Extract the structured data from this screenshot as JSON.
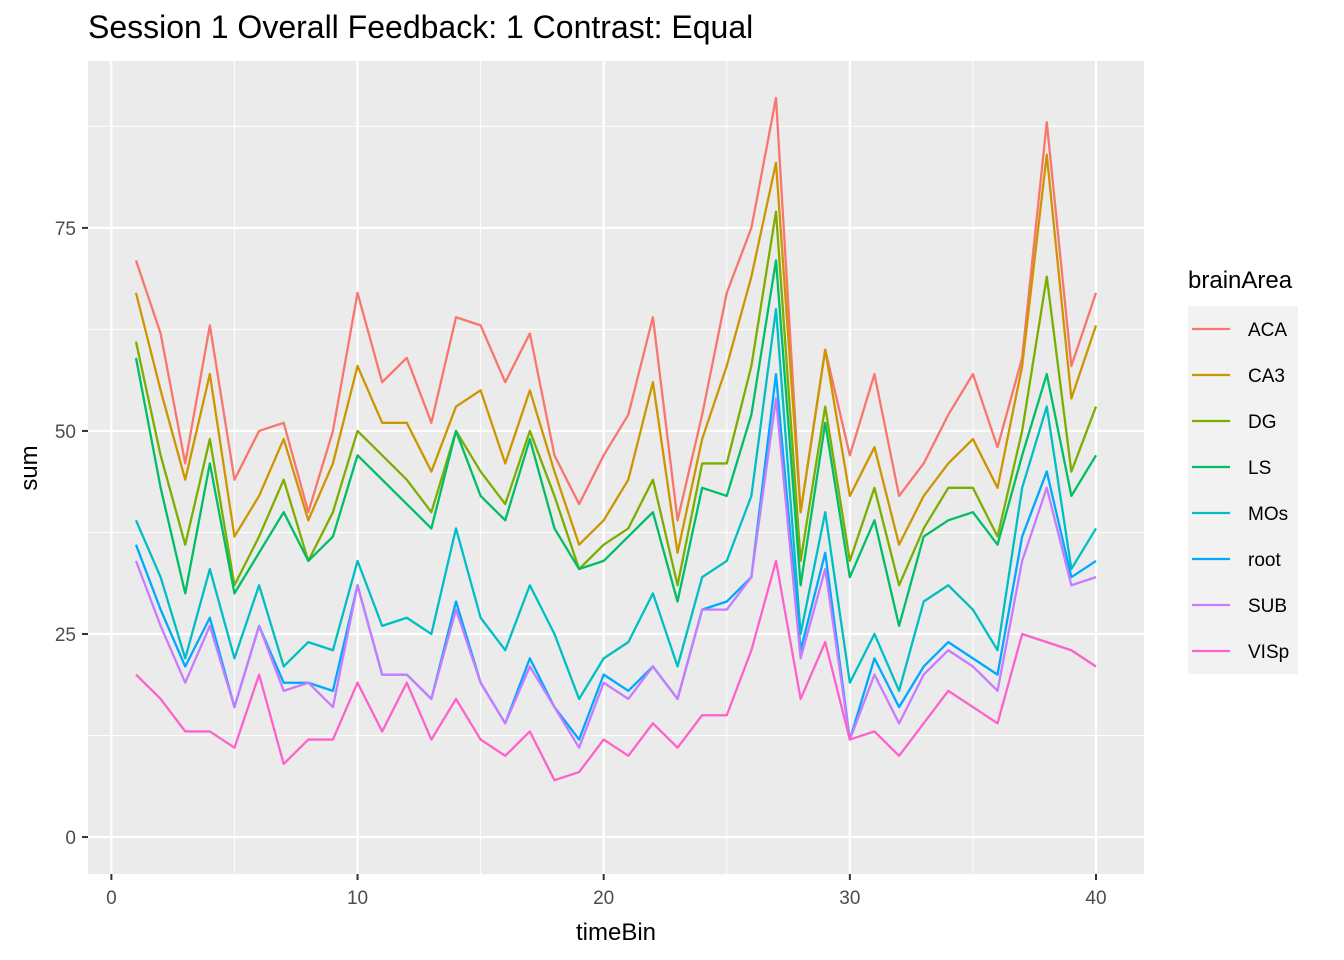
{
  "chart_data": {
    "type": "line",
    "title": "Session 1 Overall Feedback: 1 Contrast: Equal",
    "xlabel": "timeBin",
    "ylabel": "sum",
    "xlim": [
      -0.95,
      41.95
    ],
    "ylim": [
      -4.55,
      95.55
    ],
    "x_ticks": [
      0,
      10,
      20,
      30,
      40
    ],
    "x_tick_labels": [
      "0",
      "10",
      "20",
      "30",
      "40"
    ],
    "y_ticks": [
      0,
      25,
      50,
      75
    ],
    "y_tick_labels": [
      "0",
      "25",
      "50",
      "75"
    ],
    "grid": true,
    "legend": {
      "title": "brainArea",
      "position": "right"
    },
    "x": [
      1,
      2,
      3,
      4,
      5,
      6,
      7,
      8,
      9,
      10,
      11,
      12,
      13,
      14,
      15,
      16,
      17,
      18,
      19,
      20,
      21,
      22,
      23,
      24,
      25,
      26,
      27,
      28,
      29,
      30,
      31,
      32,
      33,
      34,
      35,
      36,
      37,
      38,
      39,
      40
    ],
    "series": [
      {
        "name": "ACA",
        "color": "#F8766D",
        "values": [
          71,
          62,
          46,
          63,
          44,
          50,
          51,
          40,
          50,
          67,
          56,
          59,
          51,
          64,
          63,
          56,
          62,
          47,
          41,
          47,
          52,
          64,
          39,
          52,
          67,
          75,
          91,
          40,
          60,
          47,
          57,
          42,
          46,
          52,
          57,
          48,
          59,
          88,
          58,
          67
        ]
      },
      {
        "name": "CA3",
        "color": "#CD9600",
        "values": [
          67,
          55,
          44,
          57,
          37,
          42,
          49,
          39,
          46,
          58,
          51,
          51,
          45,
          53,
          55,
          46,
          55,
          45,
          36,
          39,
          44,
          56,
          35,
          49,
          58,
          69,
          83,
          40,
          60,
          42,
          48,
          36,
          42,
          46,
          49,
          43,
          58,
          84,
          54,
          63
        ]
      },
      {
        "name": "DG",
        "color": "#7CAE00",
        "values": [
          61,
          47,
          36,
          49,
          31,
          37,
          44,
          34,
          40,
          50,
          47,
          44,
          40,
          50,
          45,
          41,
          50,
          42,
          33,
          36,
          38,
          44,
          31,
          46,
          46,
          58,
          77,
          34,
          53,
          34,
          43,
          31,
          38,
          43,
          43,
          37,
          50,
          69,
          45,
          53
        ]
      },
      {
        "name": "LS",
        "color": "#00BE67",
        "values": [
          59,
          43,
          30,
          46,
          30,
          35,
          40,
          34,
          37,
          47,
          44,
          41,
          38,
          50,
          42,
          39,
          49,
          38,
          33,
          34,
          37,
          40,
          29,
          43,
          42,
          52,
          71,
          31,
          51,
          32,
          39,
          26,
          37,
          39,
          40,
          36,
          47,
          57,
          42,
          47
        ]
      },
      {
        "name": "MOs",
        "color": "#00BFC4",
        "values": [
          39,
          32,
          22,
          33,
          22,
          31,
          21,
          24,
          23,
          34,
          26,
          27,
          25,
          38,
          27,
          23,
          31,
          25,
          17,
          22,
          24,
          30,
          21,
          32,
          34,
          42,
          65,
          25,
          40,
          19,
          25,
          18,
          29,
          31,
          28,
          23,
          43,
          53,
          33,
          38
        ]
      },
      {
        "name": "root",
        "color": "#00A9FF",
        "values": [
          36,
          28,
          21,
          27,
          16,
          26,
          19,
          19,
          18,
          31,
          20,
          20,
          17,
          29,
          19,
          14,
          22,
          16,
          12,
          20,
          18,
          21,
          17,
          28,
          29,
          32,
          57,
          23,
          35,
          12,
          22,
          16,
          21,
          24,
          22,
          20,
          37,
          45,
          32,
          34
        ]
      },
      {
        "name": "SUB",
        "color": "#C77CFF",
        "values": [
          34,
          26,
          19,
          26,
          16,
          26,
          18,
          19,
          16,
          31,
          20,
          20,
          17,
          28,
          19,
          14,
          21,
          16,
          11,
          19,
          17,
          21,
          17,
          28,
          28,
          32,
          54,
          22,
          33,
          12,
          20,
          14,
          20,
          23,
          21,
          18,
          34,
          43,
          31,
          32
        ]
      },
      {
        "name": "VISp",
        "color": "#FF61CC",
        "values": [
          20,
          17,
          13,
          13,
          11,
          20,
          9,
          12,
          12,
          19,
          13,
          19,
          12,
          17,
          12,
          10,
          13,
          7,
          8,
          12,
          10,
          14,
          11,
          15,
          15,
          23,
          34,
          17,
          24,
          12,
          13,
          10,
          14,
          18,
          16,
          14,
          25,
          24,
          23,
          21
        ]
      }
    ]
  }
}
